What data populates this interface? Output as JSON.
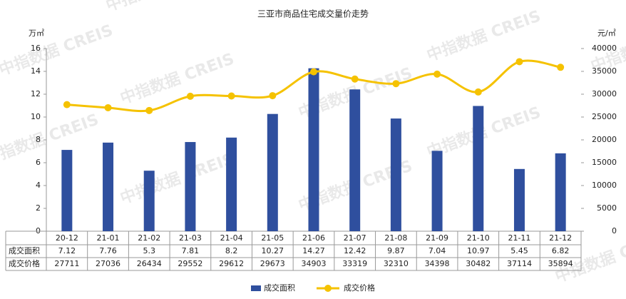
{
  "chart_data": {
    "type": "bar-line",
    "title": "三亚市商品住宅成交量价走势",
    "y_label": "万㎡",
    "y2_label": "元/㎡",
    "watermark": "中指数据 CREIS",
    "categories": [
      "20-12",
      "21-01",
      "21-02",
      "21-03",
      "21-04",
      "21-05",
      "21-06",
      "21-07",
      "21-08",
      "21-09",
      "21-10",
      "21-11",
      "21-12"
    ],
    "series": [
      {
        "name": "成交面积",
        "type": "bar",
        "color": "#2f4f9e",
        "values": [
          7.12,
          7.76,
          5.3,
          7.81,
          8.2,
          10.27,
          14.27,
          12.42,
          9.87,
          7.04,
          10.97,
          5.45,
          6.82
        ]
      },
      {
        "name": "成交价格",
        "type": "line",
        "axis": "y2",
        "color": "#f5c200",
        "values": [
          27711,
          27036,
          26434,
          29552,
          29612,
          29673,
          34903,
          33319,
          32310,
          34398,
          30482,
          37114,
          35894
        ]
      }
    ],
    "ylim": [
      0,
      16
    ],
    "yticks": [
      0,
      2,
      4,
      6,
      8,
      10,
      12,
      14,
      16
    ],
    "y2lim": [
      0,
      40000
    ],
    "y2ticks": [
      0,
      5000,
      10000,
      15000,
      20000,
      25000,
      30000,
      35000,
      40000
    ]
  }
}
